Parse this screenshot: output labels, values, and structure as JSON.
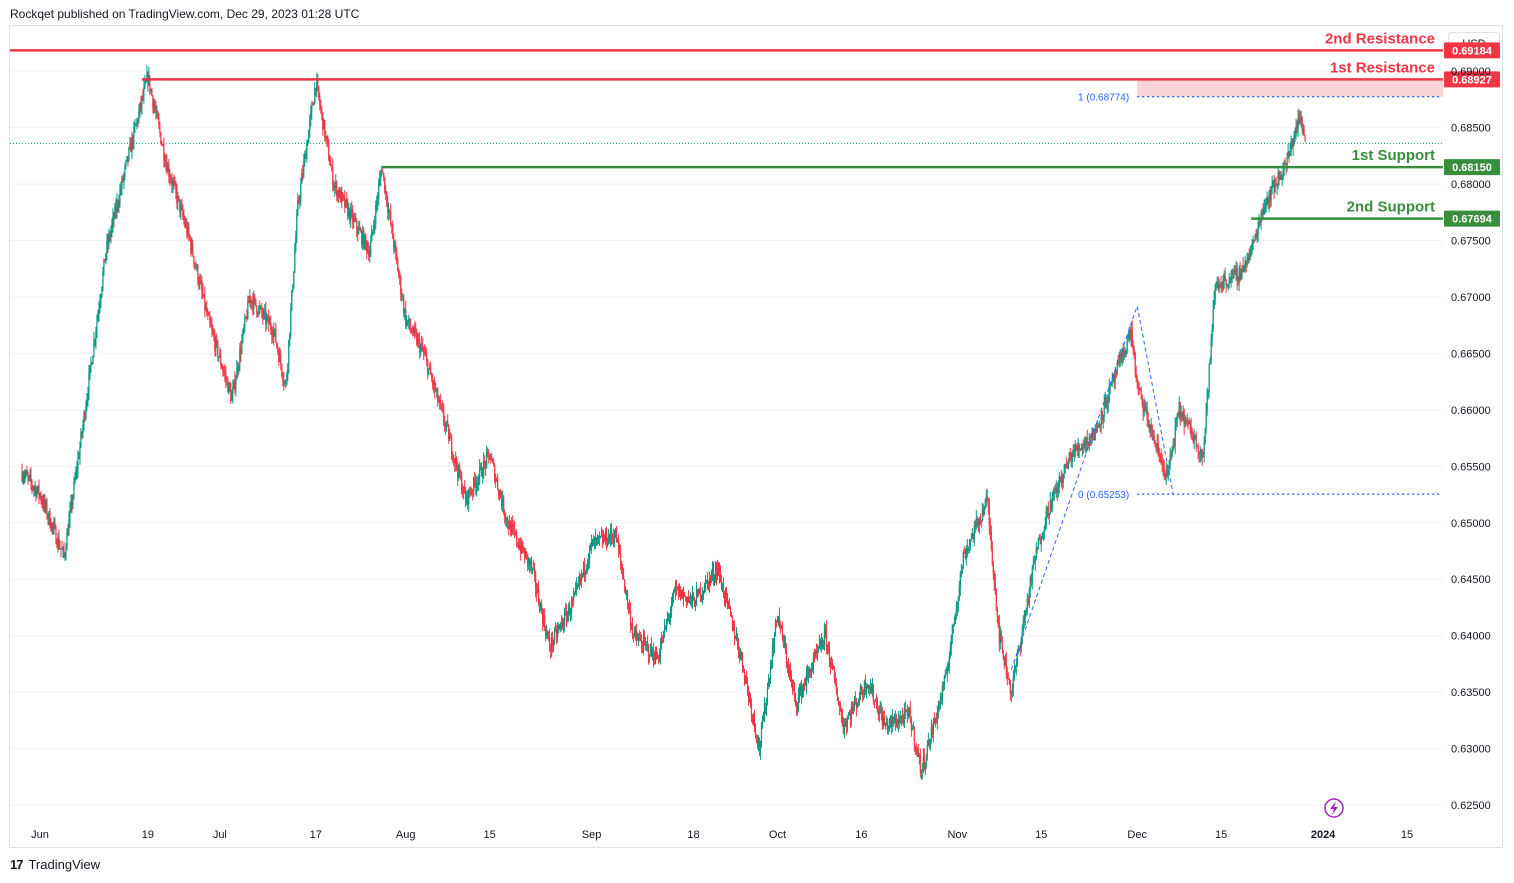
{
  "header": {
    "publisher_line": "Rockqet published on TradingView.com, Dec 29, 2023 01:28 UTC"
  },
  "footer": {
    "brand": "TradingView",
    "logo_glyph": "17"
  },
  "currency_button": "USD",
  "chart_data": {
    "type": "candlestick",
    "y_axis": {
      "range": [
        0.6235,
        0.694
      ],
      "ticks": [
        "0.69000",
        "0.68500",
        "0.68000",
        "0.67500",
        "0.67000",
        "0.66500",
        "0.66000",
        "0.65500",
        "0.65000",
        "0.64500",
        "0.64000",
        "0.63500",
        "0.63000",
        "0.62500"
      ]
    },
    "x_axis": {
      "ticks": [
        {
          "label": "Jun",
          "date": "2023-06-01"
        },
        {
          "label": "19",
          "date": "2023-06-19"
        },
        {
          "label": "Jul",
          "date": "2023-07-01"
        },
        {
          "label": "17",
          "date": "2023-07-17"
        },
        {
          "label": "Aug",
          "date": "2023-08-01"
        },
        {
          "label": "15",
          "date": "2023-08-15"
        },
        {
          "label": "Sep",
          "date": "2023-09-01"
        },
        {
          "label": "18",
          "date": "2023-09-18"
        },
        {
          "label": "Oct",
          "date": "2023-10-02"
        },
        {
          "label": "16",
          "date": "2023-10-16"
        },
        {
          "label": "Nov",
          "date": "2023-11-01"
        },
        {
          "label": "15",
          "date": "2023-11-15"
        },
        {
          "label": "Dec",
          "date": "2023-12-01"
        },
        {
          "label": "15",
          "date": "2023-12-15"
        },
        {
          "label": "2024",
          "date": "2024-01-01"
        },
        {
          "label": "15",
          "date": "2024-01-15"
        }
      ]
    },
    "price_path": [
      [
        "2023-05-29",
        0.6545
      ],
      [
        "2023-06-01",
        0.6525
      ],
      [
        "2023-06-05",
        0.647
      ],
      [
        "2023-06-08",
        0.658
      ],
      [
        "2023-06-12",
        0.674
      ],
      [
        "2023-06-16",
        0.683
      ],
      [
        "2023-06-19",
        0.6895
      ],
      [
        "2023-06-22",
        0.682
      ],
      [
        "2023-06-26",
        0.675
      ],
      [
        "2023-06-29",
        0.668
      ],
      [
        "2023-07-03",
        0.661
      ],
      [
        "2023-07-06",
        0.67
      ],
      [
        "2023-07-10",
        0.667
      ],
      [
        "2023-07-12",
        0.662
      ],
      [
        "2023-07-14",
        0.678
      ],
      [
        "2023-07-17",
        0.689
      ],
      [
        "2023-07-20",
        0.68
      ],
      [
        "2023-07-24",
        0.676
      ],
      [
        "2023-07-26",
        0.674
      ],
      [
        "2023-07-28",
        0.6815
      ],
      [
        "2023-08-01",
        0.668
      ],
      [
        "2023-08-04",
        0.665
      ],
      [
        "2023-08-08",
        0.658
      ],
      [
        "2023-08-11",
        0.652
      ],
      [
        "2023-08-15",
        0.656
      ],
      [
        "2023-08-18",
        0.65
      ],
      [
        "2023-08-22",
        0.646
      ],
      [
        "2023-08-25",
        0.639
      ],
      [
        "2023-08-29",
        0.643
      ],
      [
        "2023-09-01",
        0.648
      ],
      [
        "2023-09-05",
        0.649
      ],
      [
        "2023-09-08",
        0.64
      ],
      [
        "2023-09-12",
        0.638
      ],
      [
        "2023-09-15",
        0.644
      ],
      [
        "2023-09-18",
        0.643
      ],
      [
        "2023-09-22",
        0.646
      ],
      [
        "2023-09-26",
        0.638
      ],
      [
        "2023-09-29",
        0.63
      ],
      [
        "2023-10-02",
        0.642
      ],
      [
        "2023-10-05",
        0.634
      ],
      [
        "2023-10-10",
        0.64
      ],
      [
        "2023-10-13",
        0.632
      ],
      [
        "2023-10-17",
        0.636
      ],
      [
        "2023-10-20",
        0.632
      ],
      [
        "2023-10-24",
        0.633
      ],
      [
        "2023-10-26",
        0.628
      ],
      [
        "2023-10-30",
        0.636
      ],
      [
        "2023-11-02",
        0.647
      ],
      [
        "2023-11-06",
        0.652
      ],
      [
        "2023-11-08",
        0.64
      ],
      [
        "2023-11-10",
        0.635
      ],
      [
        "2023-11-14",
        0.647
      ],
      [
        "2023-11-16",
        0.651
      ],
      [
        "2023-11-20",
        0.656
      ],
      [
        "2023-11-24",
        0.658
      ],
      [
        "2023-11-28",
        0.664
      ],
      [
        "2023-11-30",
        0.667
      ],
      [
        "2023-12-01",
        0.662
      ],
      [
        "2023-12-04",
        0.657
      ],
      [
        "2023-12-06",
        0.654
      ],
      [
        "2023-12-08",
        0.66
      ],
      [
        "2023-12-12",
        0.656
      ],
      [
        "2023-12-14",
        0.671
      ],
      [
        "2023-12-18",
        0.672
      ],
      [
        "2023-12-20",
        0.674
      ],
      [
        "2023-12-22",
        0.678
      ],
      [
        "2023-12-26",
        0.682
      ],
      [
        "2023-12-28",
        0.686
      ],
      [
        "2023-12-29",
        0.684
      ]
    ],
    "last_price": 0.6836,
    "levels": [
      {
        "name": "2nd Resistance",
        "value": "0.69184",
        "color": "#f23645"
      },
      {
        "name": "1st Resistance",
        "value": "0.68927",
        "color": "#f23645"
      },
      {
        "name": "1st Support",
        "value": "0.68150",
        "color": "#388e3c"
      },
      {
        "name": "2nd Support",
        "value": "0.67694",
        "color": "#388e3c"
      }
    ],
    "fibonacci": [
      {
        "label": "1 (0.68774)",
        "value": 0.68774
      },
      {
        "label": "0 (0.65253)",
        "value": 0.65253
      }
    ],
    "colors": {
      "up": "#089981",
      "down": "#f23645",
      "fib": "#2962ff",
      "zone": "#f8c8cc"
    }
  }
}
